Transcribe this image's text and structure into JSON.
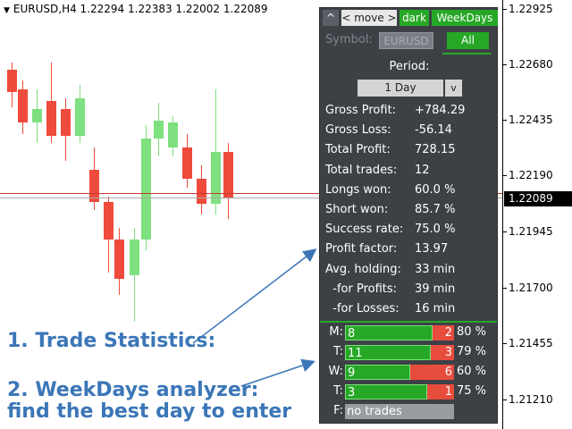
{
  "header": {
    "symbol_line": "EURUSD,H4  1.22294 1.22383 1.22002 1.22089"
  },
  "price_axis": {
    "labels": [
      "1.22925",
      "1.22680",
      "1.22435",
      "1.22190",
      "1.21945",
      "1.21700",
      "1.21455",
      "1.21210"
    ],
    "current": "1.22089"
  },
  "panel": {
    "top_buttons": {
      "up": "^",
      "move": "< move >",
      "dark": "dark",
      "weekdays": "WeekDays"
    },
    "symbol_label": "Symbol:",
    "symbol_value": "EURUSD",
    "all_button": "All",
    "period_label": "Period:",
    "period_value": "1 Day",
    "period_arrow": "v",
    "stats": [
      {
        "label": "Gross Profit:",
        "value": "+784.29"
      },
      {
        "label": "Gross Loss:",
        "value": "-56.14"
      },
      {
        "label": "Total Profit:",
        "value": "728.15"
      },
      {
        "label": "Total trades:",
        "value": "12"
      },
      {
        "label": "Longs won:",
        "value": "60.0 %"
      },
      {
        "label": "Short won:",
        "value": "85.7 %"
      },
      {
        "label": "Success rate:",
        "value": "75.0 %"
      },
      {
        "label": "Profit factor:",
        "value": "13.97"
      },
      {
        "label": "Avg. holding:",
        "value": "33 min"
      },
      {
        "label": "  -for Profits:",
        "value": "39 min"
      },
      {
        "label": "  -for Losses:",
        "value": "16 min"
      }
    ],
    "weekdays": [
      {
        "day": "M:",
        "wins": "8",
        "losses": "2",
        "pct": "80 %",
        "win_share": 0.8
      },
      {
        "day": "T:",
        "wins": "11",
        "losses": "3",
        "pct": "79 %",
        "win_share": 0.79
      },
      {
        "day": "W:",
        "wins": "9",
        "losses": "6",
        "pct": "60 %",
        "win_share": 0.6
      },
      {
        "day": "T:",
        "wins": "3",
        "losses": "1",
        "pct": "75 %",
        "win_share": 0.75
      },
      {
        "day": "F:",
        "none": "no trades"
      }
    ]
  },
  "annotations": {
    "trade_stats": "1. Trade Statistics:",
    "weekdays_line1": "2. WeekDays analyzer:",
    "weekdays_line2": "find the best day to enter"
  },
  "colors": {
    "bull": "#7ee07e",
    "bear": "#ef4b3c",
    "panel_bg": "#3d4146",
    "accent_green": "#26a826",
    "annotation_blue": "#3b76b7"
  }
}
